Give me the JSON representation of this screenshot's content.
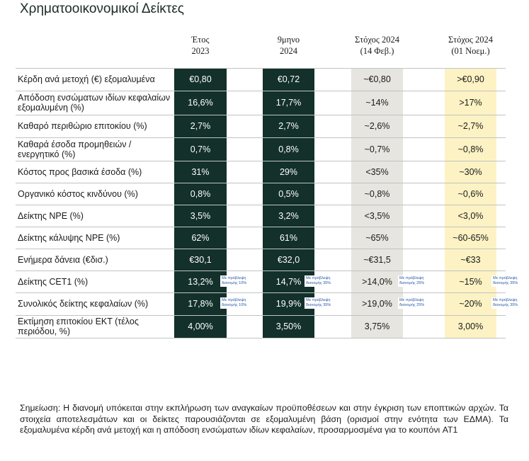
{
  "title": "Χρηματοοικονομικοί Δείκτες",
  "columns": [
    {
      "line1": "Έτος",
      "line2": "2023"
    },
    {
      "line1": "9μηνο",
      "line2": "2024"
    },
    {
      "line1": "Στόχος 2024",
      "line2": "(14 Φεβ.)"
    },
    {
      "line1": "Στόχος 2024",
      "line2": "(01 Νοεμ.)"
    }
  ],
  "colors": {
    "dark": "#13302a",
    "grey": "#e6e5e0",
    "yellow": "#fdf2c4"
  },
  "rows": [
    {
      "label": "Κέρδη ανά μετοχή (€) εξομαλυμένα",
      "values": [
        "€0,80",
        "€0,72",
        "~€0,80",
        ">€0,90"
      ]
    },
    {
      "label": "Απόδοση ενσώματων ιδίων κεφαλαίων εξομαλυμένη (%)",
      "values": [
        "16,6%",
        "17,7%",
        "~14%",
        ">17%"
      ]
    },
    {
      "label": "Καθαρό περιθώριο επιτοκίου (%)",
      "values": [
        "2,7%",
        "2,7%",
        "~2,6%",
        "~2,7%"
      ]
    },
    {
      "label": "Καθαρά έσοδα προμηθειών / ενεργητικό (%)",
      "values": [
        "0,7%",
        "0,8%",
        "~0,7%",
        "~0,8%"
      ]
    },
    {
      "label": "Κόστος προς βασικά έσοδα (%)",
      "values": [
        "31%",
        "29%",
        "<35%",
        "~30%"
      ]
    },
    {
      "label": "Οργανικό κόστος κινδύνου (%)",
      "values": [
        "0,8%",
        "0,5%",
        "~0,8%",
        "~0,6%"
      ]
    },
    {
      "label": "Δείκτης NPE (%)",
      "values": [
        "3,5%",
        "3,2%",
        "<3,5%",
        "<3,0%"
      ]
    },
    {
      "label": "Δείκτης κάλυψης NPE (%)",
      "values": [
        "62%",
        "61%",
        "~65%",
        "~60-65%"
      ]
    },
    {
      "label": "Ενήμερα δάνεια (€δισ.)",
      "values": [
        "€30,1",
        "€32,0",
        "~€31,5",
        "~€33"
      ]
    },
    {
      "label": "Δείκτης CET1 (%)",
      "values": [
        "13,2%",
        "14,7%",
        ">14,0%",
        "~15%"
      ]
    },
    {
      "label": "Συνολικός δείκτης κεφαλαίων (%)",
      "values": [
        "17,8%",
        "19,9%",
        ">19,0%",
        "~20%"
      ]
    },
    {
      "label": "Εκτίμηση επιτοκίου ΕΚΤ (τέλος περιόδου, %)",
      "values": [
        "4,00%",
        "3,50%",
        "3,75%",
        "3,00%"
      ]
    }
  ],
  "notes": {
    "cet1": [
      "Με πρόβλεψη διανομής 10%",
      "Με πρόβλεψη διανομής 35%",
      "Με πρόβλεψη διανομής 25%",
      "Με πρόβλεψη διανομής 35%"
    ],
    "total": [
      "Με πρόβλεψη διανομής 10%",
      "Με πρόβλεψη διανομής 35%",
      "Με πρόβλεψη διανομής 25%",
      "Με πρόβλεψη διανομής 35%"
    ]
  },
  "footnote": "Σημείωση: Η διανομή υπόκειται στην εκπλήρωση των αναγκαίων προϋποθέσεων και στην έγκριση των εποπτικών αρχών. Τα στοιχεία αποτελεσμάτων και οι δείκτες παρουσιάζονται σε εξομαλυμένη βάση (ορισμοί στην ενότητα των ΕΔΜΑ). Τα εξομαλυμένα κέρδη ανά μετοχή και η απόδοση ενσώματων ιδίων κεφαλαίων, προσαρμοσμένα για το κουπόνι AT1"
}
